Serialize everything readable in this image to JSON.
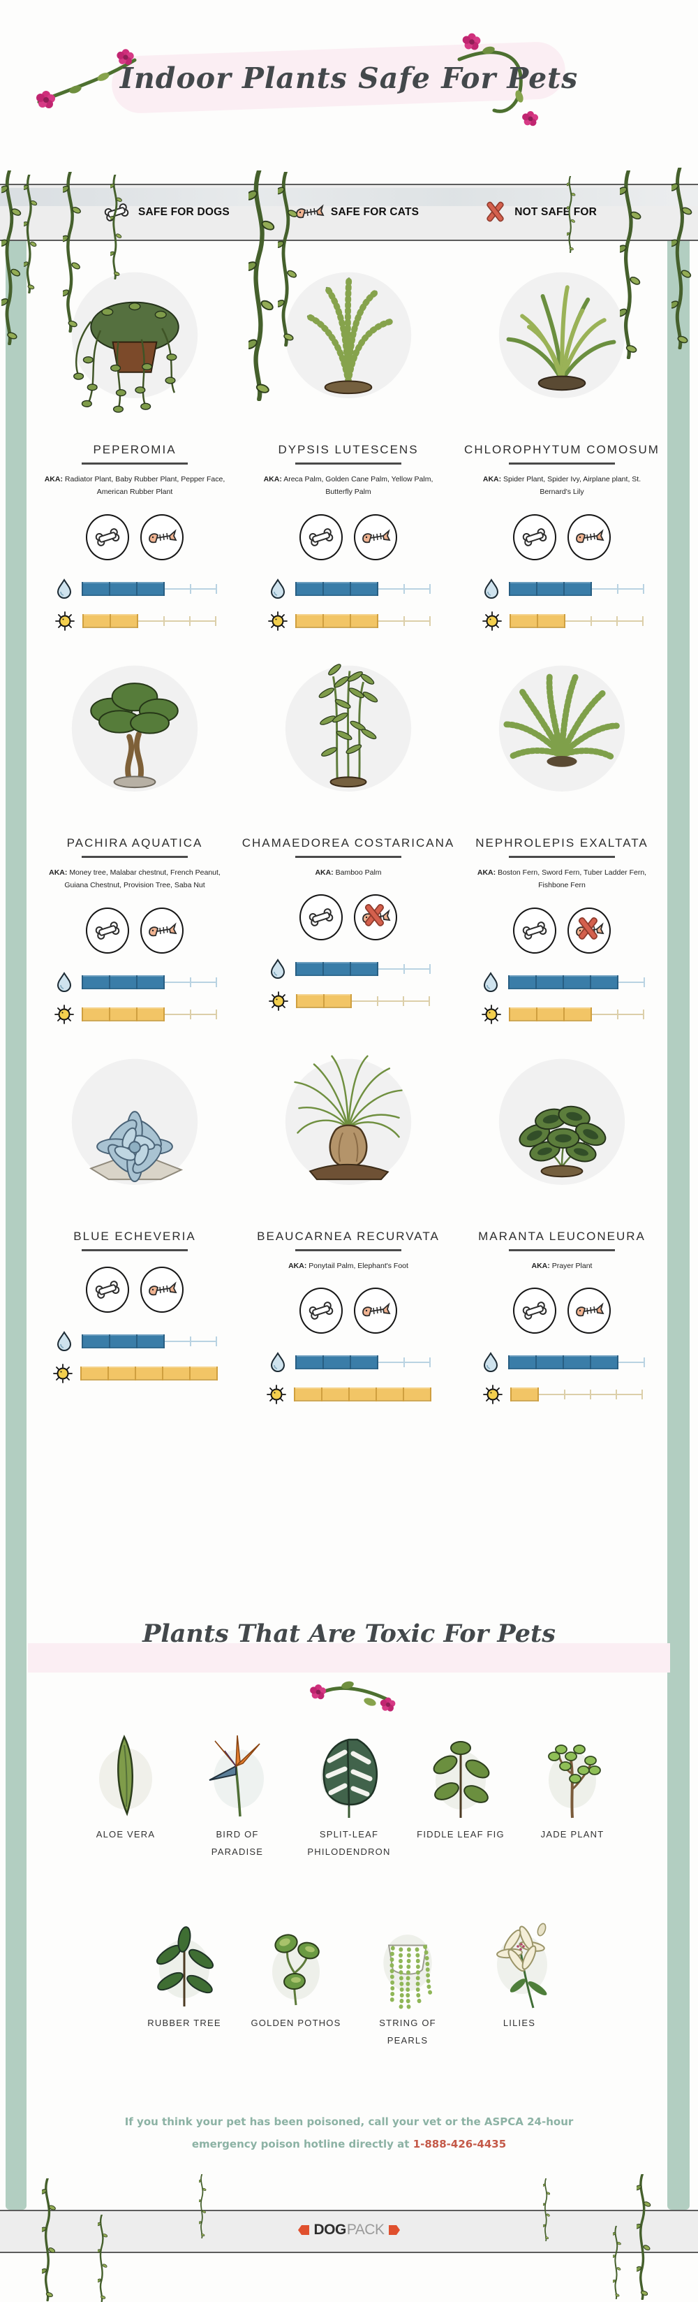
{
  "title": "Indoor Plants Safe For Pets",
  "legend": {
    "dogs_label": "SAFE FOR DOGS",
    "cats_label": "SAFE FOR CATS",
    "not_safe_label": "NOT SAFE FOR"
  },
  "aka_label": "AKA:",
  "rating_scale_max": 5,
  "safe_plants": [
    {
      "name": "PEPEROMIA",
      "aka": "Radiator Plant, Baby Rubber Plant, Pepper Face, American Rubber Plant",
      "safe_for_dogs": true,
      "safe_for_cats": true,
      "water_level": 3,
      "sun_level": 2
    },
    {
      "name": "DYPSIS LUTESCENS",
      "aka": "Areca Palm, Golden Cane Palm, Yellow Palm, Butterfly Palm",
      "safe_for_dogs": true,
      "safe_for_cats": true,
      "water_level": 3,
      "sun_level": 3
    },
    {
      "name": "CHLOROPHYTUM COMOSUM",
      "aka": "Spider Plant, Spider Ivy, Airplane plant, St. Bernard's Lily",
      "safe_for_dogs": true,
      "safe_for_cats": true,
      "water_level": 3,
      "sun_level": 2
    },
    {
      "name": "PACHIRA AQUATICA",
      "aka": "Money tree, Malabar chestnut, French Peanut, Guiana Chestnut, Provision Tree, Saba Nut",
      "safe_for_dogs": true,
      "safe_for_cats": true,
      "water_level": 3,
      "sun_level": 3
    },
    {
      "name": "CHAMAEDOREA COSTARICANA",
      "aka": "Bamboo Palm",
      "safe_for_dogs": true,
      "safe_for_cats": false,
      "water_level": 3,
      "sun_level": 2
    },
    {
      "name": "NEPHROLEPIS EXALTATA",
      "aka": "Boston Fern, Sword Fern, Tuber Ladder Fern, Fishbone Fern",
      "safe_for_dogs": true,
      "safe_for_cats": false,
      "water_level": 4,
      "sun_level": 3
    },
    {
      "name": "BLUE ECHEVERIA",
      "aka": "",
      "safe_for_dogs": true,
      "safe_for_cats": true,
      "water_level": 3,
      "sun_level": 5
    },
    {
      "name": "BEAUCARNEA RECURVATA",
      "aka": "Ponytail Palm, Elephant's Foot",
      "safe_for_dogs": true,
      "safe_for_cats": true,
      "water_level": 3,
      "sun_level": 5
    },
    {
      "name": "MARANTA LEUCONEURA",
      "aka": "Prayer Plant",
      "safe_for_dogs": true,
      "safe_for_cats": true,
      "water_level": 4,
      "sun_level": 1
    }
  ],
  "toxic": {
    "title": "Plants That Are Toxic For Pets",
    "plants": [
      "ALOE VERA",
      "BIRD OF PARADISE",
      "SPLIT-LEAF PHILODENDRON",
      "FIDDLE LEAF FIG",
      "JADE PLANT",
      "RUBBER TREE",
      "GOLDEN POTHOS",
      "STRING OF PEARLS",
      "LILIES"
    ]
  },
  "footer": {
    "line1": "If you think your pet has been poisoned, call your vet or the ASPCA 24-hour",
    "line2_prefix": "emergency poison hotline directly at",
    "phone": "1-888-426-4435"
  },
  "brand": {
    "bold": "DOG",
    "light": "PACK"
  },
  "icons": {
    "dog": "bone-icon",
    "cat": "fishbone-icon",
    "not_safe": "x-icon",
    "water": "water-drop-icon",
    "sun": "sun-icon"
  },
  "colors": {
    "water_bar": "#3a7da8",
    "sun_bar": "#f2c566",
    "side_strips": "#b2cec1",
    "band_bg": "#ededed",
    "pink_accent": "#fbeef3",
    "flower_pink": "#cf2f7b",
    "footer_green": "#8cb2a4",
    "phone_red": "#c45948",
    "ribbon_red": "#e0502e"
  }
}
